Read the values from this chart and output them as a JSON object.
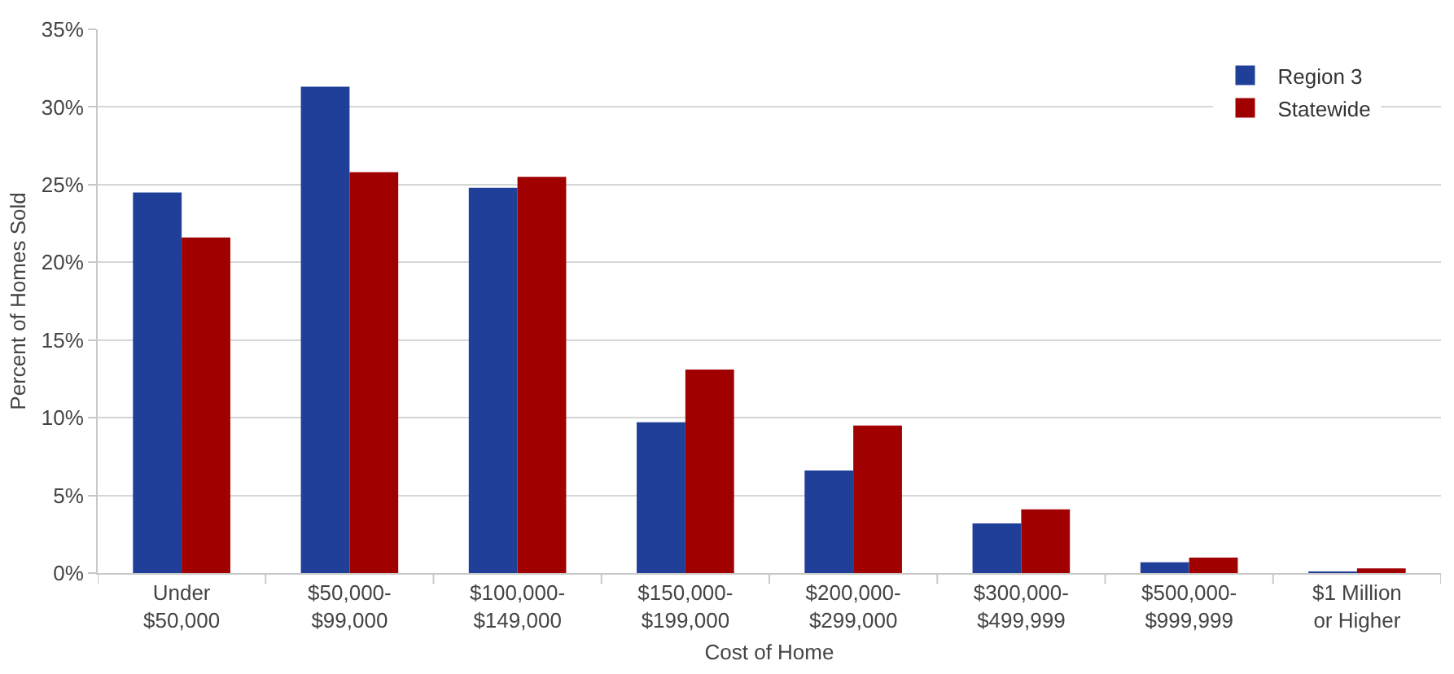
{
  "chart_data": {
    "type": "bar",
    "xlabel": "Cost of Home",
    "ylabel": "Percent of Homes Sold",
    "categories": [
      "Under\n$50,000",
      "$50,000-\n$99,000",
      "$100,000-\n$149,000",
      "$150,000-\n$199,000",
      "$200,000-\n$299,000",
      "$300,000-\n$499,999",
      "$500,000-\n$999,999",
      "$1 Million\nor Higher"
    ],
    "series": [
      {
        "name": "Region 3",
        "color": "#1f3f98",
        "values": [
          24.5,
          31.3,
          24.8,
          9.7,
          6.6,
          3.2,
          0.7,
          0.1
        ]
      },
      {
        "name": "Statewide",
        "color": "#a00000",
        "values": [
          21.6,
          25.8,
          25.5,
          13.1,
          9.5,
          4.1,
          1.0,
          0.3
        ]
      }
    ],
    "ylim": [
      0,
      35
    ],
    "yticks": [
      {
        "value": 0,
        "label": "0%"
      },
      {
        "value": 5,
        "label": "5%"
      },
      {
        "value": 10,
        "label": "10%"
      },
      {
        "value": 15,
        "label": "15%"
      },
      {
        "value": 20,
        "label": "20%"
      },
      {
        "value": 25,
        "label": "25%"
      },
      {
        "value": 30,
        "label": "30%"
      },
      {
        "value": 35,
        "label": "35%"
      }
    ],
    "grid": "y",
    "legend": "top right"
  }
}
